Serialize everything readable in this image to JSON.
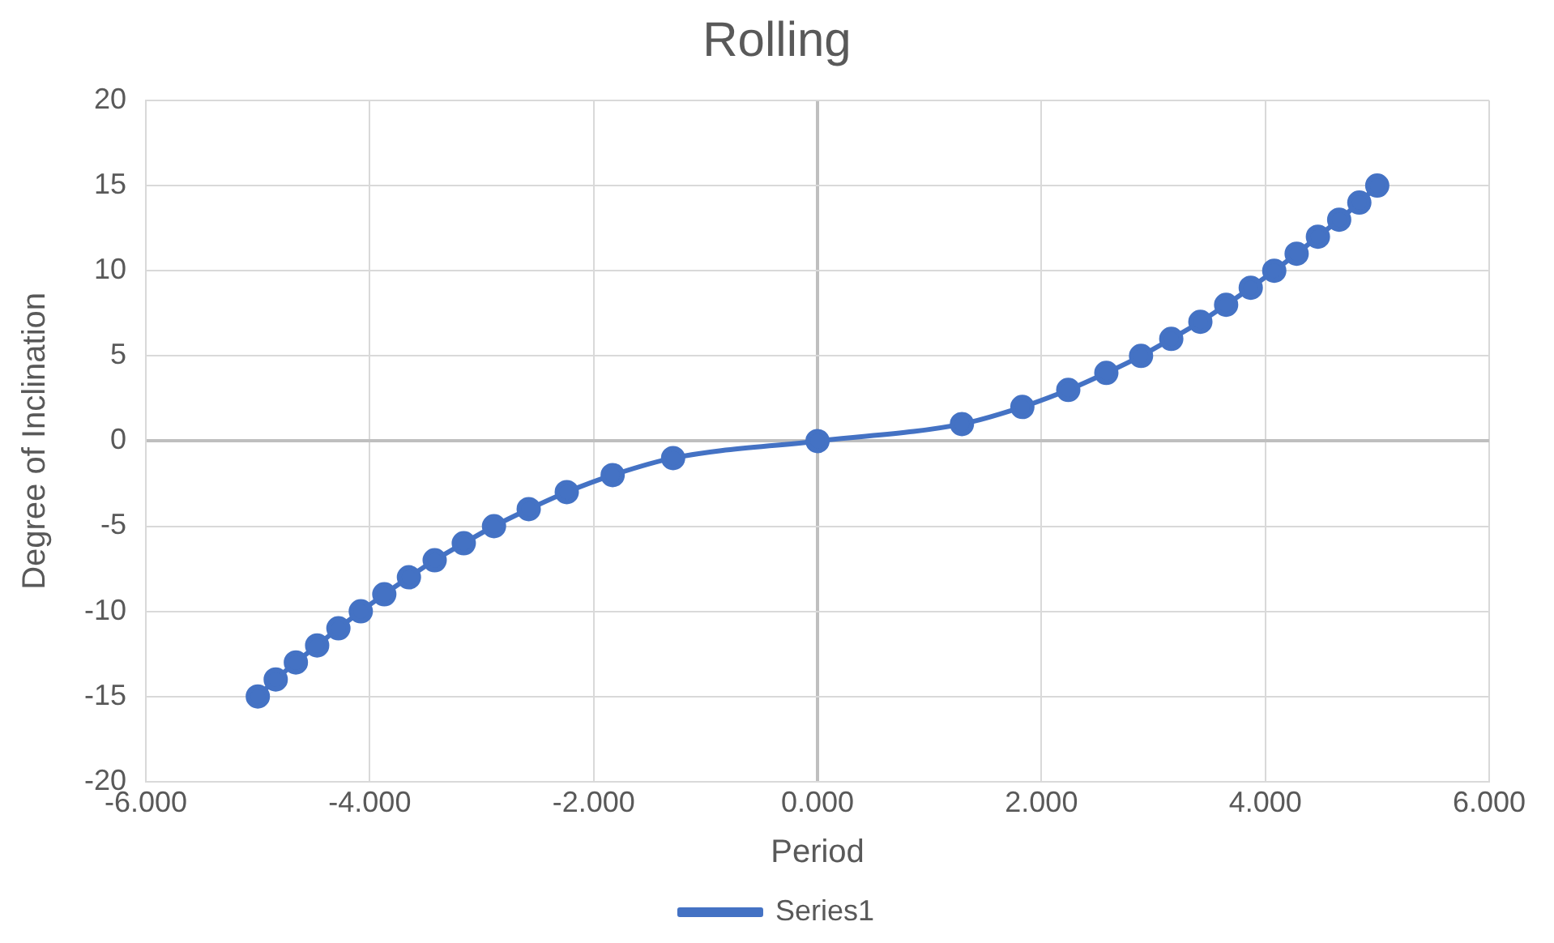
{
  "chart_data": {
    "type": "line",
    "title": "Rolling",
    "xlabel": "Period",
    "ylabel": "Degree of Inclination",
    "x": [
      -5.0,
      -4.84,
      -4.66,
      -4.47,
      -4.28,
      -4.08,
      -3.87,
      -3.65,
      -3.42,
      -3.16,
      -2.89,
      -2.58,
      -2.24,
      -1.83,
      -1.29,
      0,
      1.29,
      1.83,
      2.24,
      2.58,
      2.89,
      3.16,
      3.42,
      3.65,
      3.87,
      4.08,
      4.28,
      4.47,
      4.66,
      4.84,
      5.0
    ],
    "series": [
      {
        "name": "Series1",
        "color": "#4472c4",
        "values": [
          -15,
          -14,
          -13,
          -12,
          -11,
          -10,
          -9,
          -8,
          -7,
          -6,
          -5,
          -4,
          -3,
          -2,
          -1,
          0,
          1,
          2,
          3,
          4,
          5,
          6,
          7,
          8,
          9,
          10,
          11,
          12,
          13,
          14,
          15
        ]
      }
    ],
    "xlim": [
      -6,
      6
    ],
    "xticks": [
      {
        "value": -6,
        "label": "-6.000"
      },
      {
        "value": -4,
        "label": "-4.000"
      },
      {
        "value": -2,
        "label": "-2.000"
      },
      {
        "value": 0,
        "label": "0.000"
      },
      {
        "value": 2,
        "label": "2.000"
      },
      {
        "value": 4,
        "label": "4.000"
      },
      {
        "value": 6,
        "label": "6.000"
      }
    ],
    "ylim": [
      -20,
      20
    ],
    "yticks": [
      -20,
      -15,
      -10,
      -5,
      0,
      5,
      10,
      15,
      20
    ],
    "grid": true,
    "legend": "bottom",
    "marker": "circle",
    "line_style": "solid"
  }
}
